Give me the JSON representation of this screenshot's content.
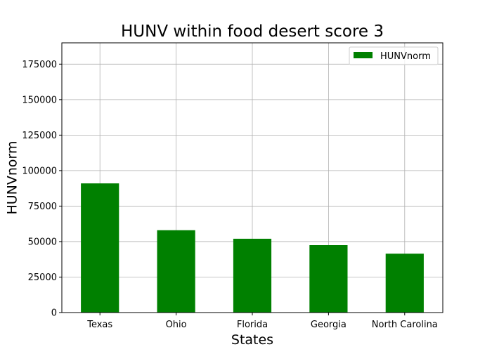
{
  "chart_data": {
    "type": "bar",
    "title": "HUNV within food desert score 3",
    "xlabel": "States",
    "ylabel": "HUNVnorm",
    "categories": [
      "Texas",
      "Ohio",
      "Florida",
      "Georgia",
      "North Carolina"
    ],
    "series": [
      {
        "name": "HUNVnorm",
        "values": [
          91000,
          58000,
          52000,
          47500,
          41500
        ],
        "color": "#008000"
      }
    ],
    "ylim": [
      0,
      190000
    ],
    "yticks": [
      0,
      25000,
      50000,
      75000,
      100000,
      125000,
      150000,
      175000
    ],
    "grid": true,
    "legend": "top-right"
  }
}
